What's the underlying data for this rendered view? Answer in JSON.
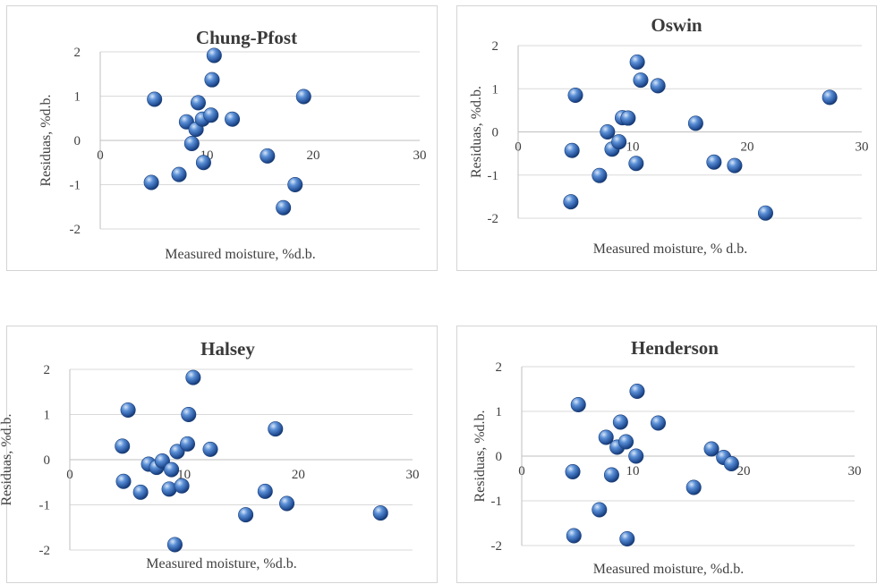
{
  "chart_data": [
    {
      "type": "scatter",
      "title": "Chung-Pfost",
      "xlabel": "Measured moisture, %d.b.",
      "ylabel": "Residuas, %d.b.",
      "xlim": [
        0,
        30
      ],
      "ylim": [
        -2,
        2
      ],
      "xticks": [
        "0",
        "10",
        "20",
        "30"
      ],
      "yticks": [
        "2",
        "1",
        "0",
        "-1",
        "-2"
      ],
      "points": [
        {
          "x": 4.8,
          "y": -0.95
        },
        {
          "x": 5.1,
          "y": 0.93
        },
        {
          "x": 7.4,
          "y": -0.77
        },
        {
          "x": 8.1,
          "y": 0.42
        },
        {
          "x": 8.6,
          "y": -0.07
        },
        {
          "x": 9.0,
          "y": 0.25
        },
        {
          "x": 9.2,
          "y": 0.85
        },
        {
          "x": 9.6,
          "y": 0.48
        },
        {
          "x": 9.7,
          "y": -0.5
        },
        {
          "x": 10.4,
          "y": 0.57
        },
        {
          "x": 10.5,
          "y": 1.37
        },
        {
          "x": 10.7,
          "y": 1.92
        },
        {
          "x": 12.4,
          "y": 0.48
        },
        {
          "x": 15.7,
          "y": -0.35
        },
        {
          "x": 17.2,
          "y": -1.52
        },
        {
          "x": 18.3,
          "y": -1.0
        },
        {
          "x": 19.1,
          "y": 0.99
        }
      ]
    },
    {
      "type": "scatter",
      "title": "Oswin",
      "xlabel": "Measured moisture, % d.b.",
      "ylabel": "Residuas, %d.b.",
      "xlim": [
        0,
        30
      ],
      "ylim": [
        -2,
        2
      ],
      "xticks": [
        "0",
        "10",
        "20",
        "30"
      ],
      "yticks": [
        "2",
        "1",
        "0",
        "-1",
        "-2"
      ],
      "points": [
        {
          "x": 4.6,
          "y": -1.62
        },
        {
          "x": 4.7,
          "y": -0.43
        },
        {
          "x": 5.0,
          "y": 0.85
        },
        {
          "x": 7.1,
          "y": -1.01
        },
        {
          "x": 7.8,
          "y": 0.0
        },
        {
          "x": 8.2,
          "y": -0.4
        },
        {
          "x": 8.8,
          "y": -0.23
        },
        {
          "x": 9.1,
          "y": 0.33
        },
        {
          "x": 9.6,
          "y": 0.32
        },
        {
          "x": 10.3,
          "y": -0.73
        },
        {
          "x": 10.4,
          "y": 1.62
        },
        {
          "x": 10.7,
          "y": 1.2
        },
        {
          "x": 12.2,
          "y": 1.07
        },
        {
          "x": 15.5,
          "y": 0.2
        },
        {
          "x": 17.1,
          "y": -0.7
        },
        {
          "x": 18.9,
          "y": -0.78
        },
        {
          "x": 21.6,
          "y": -1.88
        },
        {
          "x": 27.2,
          "y": 0.8
        }
      ]
    },
    {
      "type": "scatter",
      "title": "Halsey",
      "xlabel": "Measured moisture, %d.b.",
      "ylabel": "Residuas, %d.b.",
      "xlim": [
        0,
        30
      ],
      "ylim": [
        -2,
        2
      ],
      "xticks": [
        "0",
        "10",
        "20",
        "30"
      ],
      "yticks": [
        "2",
        "1",
        "0",
        "-1",
        "-2"
      ],
      "points": [
        {
          "x": 4.6,
          "y": 0.3
        },
        {
          "x": 4.7,
          "y": -0.48
        },
        {
          "x": 5.1,
          "y": 1.1
        },
        {
          "x": 6.2,
          "y": -0.72
        },
        {
          "x": 6.9,
          "y": -0.1
        },
        {
          "x": 7.6,
          "y": -0.17
        },
        {
          "x": 8.1,
          "y": -0.03
        },
        {
          "x": 8.7,
          "y": -0.65
        },
        {
          "x": 8.9,
          "y": -0.22
        },
        {
          "x": 9.2,
          "y": -1.88
        },
        {
          "x": 9.4,
          "y": 0.18
        },
        {
          "x": 9.8,
          "y": -0.58
        },
        {
          "x": 10.3,
          "y": 0.35
        },
        {
          "x": 10.4,
          "y": 1.0
        },
        {
          "x": 10.8,
          "y": 1.82
        },
        {
          "x": 12.3,
          "y": 0.23
        },
        {
          "x": 15.4,
          "y": -1.22
        },
        {
          "x": 17.1,
          "y": -0.7
        },
        {
          "x": 18.0,
          "y": 0.68
        },
        {
          "x": 19.0,
          "y": -0.97
        },
        {
          "x": 27.2,
          "y": -1.18
        }
      ]
    },
    {
      "type": "scatter",
      "title": "Henderson",
      "xlabel": "Measured moisture, %d.b.",
      "ylabel": "Residuas, %d.b.",
      "xlim": [
        0,
        30
      ],
      "ylim": [
        -2,
        2
      ],
      "xticks": [
        "0",
        "10",
        "20",
        "30"
      ],
      "yticks": [
        "2",
        "1",
        "0",
        "-1",
        "-2"
      ],
      "points": [
        {
          "x": 4.6,
          "y": -0.35
        },
        {
          "x": 4.7,
          "y": -1.78
        },
        {
          "x": 5.1,
          "y": 1.15
        },
        {
          "x": 7.0,
          "y": -1.2
        },
        {
          "x": 7.6,
          "y": 0.42
        },
        {
          "x": 8.1,
          "y": -0.42
        },
        {
          "x": 8.6,
          "y": 0.2
        },
        {
          "x": 8.9,
          "y": 0.76
        },
        {
          "x": 9.4,
          "y": 0.32
        },
        {
          "x": 9.5,
          "y": -1.85
        },
        {
          "x": 10.3,
          "y": 0.0
        },
        {
          "x": 10.4,
          "y": 1.45
        },
        {
          "x": 12.3,
          "y": 0.74
        },
        {
          "x": 15.5,
          "y": -0.7
        },
        {
          "x": 17.1,
          "y": 0.16
        },
        {
          "x": 18.2,
          "y": -0.03
        },
        {
          "x": 18.9,
          "y": -0.17
        }
      ]
    }
  ]
}
